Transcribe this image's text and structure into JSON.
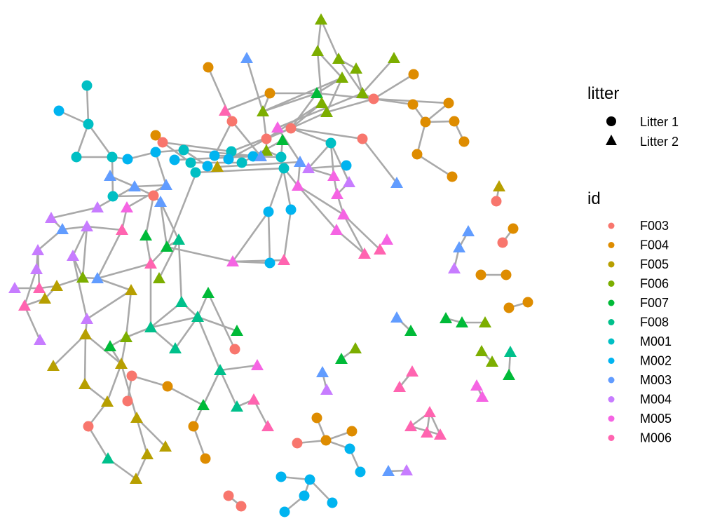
{
  "colors": {
    "F003": "#F8766D",
    "F004": "#DE8C00",
    "F005": "#B79F00",
    "F006": "#7CAE00",
    "F007": "#00BA38",
    "F008": "#00C08B",
    "M001": "#00BFC4",
    "M002": "#00B4F0",
    "M003": "#619CFF",
    "M004": "#C77CFF",
    "M005": "#F564E3",
    "M006": "#FF64B0",
    "edge": "#A9A9A9",
    "legend_glyph": "#000000"
  },
  "legend": {
    "litter_title": "litter",
    "litter_items": [
      {
        "label": "Litter 1",
        "shape": "circle"
      },
      {
        "label": "Litter 2",
        "shape": "triangle"
      }
    ],
    "id_title": "id",
    "id_items": [
      "F003",
      "F004",
      "F005",
      "F006",
      "F007",
      "F008",
      "M001",
      "M002",
      "M003",
      "M004",
      "M005",
      "M006"
    ]
  }
}
